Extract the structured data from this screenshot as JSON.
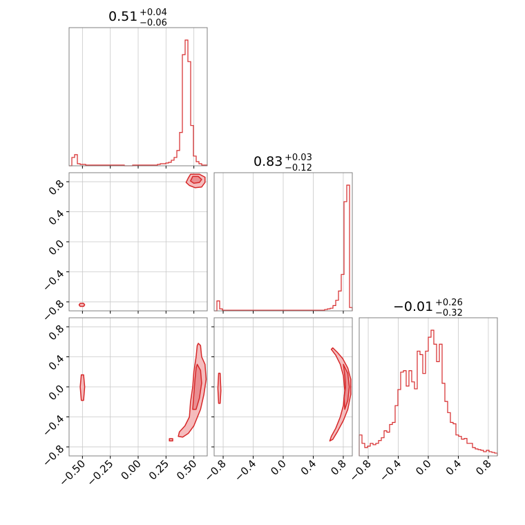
{
  "colors": {
    "line": "#d62728",
    "fill": "#f4b5b6",
    "grid": "#c8c8c8",
    "frame": "#7f7f7f"
  },
  "chart_data": {
    "type": "corner",
    "parameters": [
      {
        "title_main": "0.51",
        "title_plus": "+0.04",
        "title_minus": "−0.06",
        "range": [
          -0.62,
          0.62
        ],
        "ticks": [
          -0.5,
          -0.25,
          0.0,
          0.25,
          0.5
        ],
        "tick_labels": [
          "−0.50",
          "−0.25",
          "0.00",
          "0.25",
          "0.50"
        ]
      },
      {
        "title_main": "0.83",
        "title_plus": "+0.03",
        "title_minus": "−0.12",
        "range": [
          -0.92,
          0.92
        ],
        "ticks": [
          -0.8,
          -0.4,
          0.0,
          0.4,
          0.8
        ],
        "tick_labels": [
          "−0.8",
          "−0.4",
          "0.0",
          "0.4",
          "0.8"
        ]
      },
      {
        "title_main": "−0.01",
        "title_plus": "+0.26",
        "title_minus": "−0.32",
        "range": [
          -0.92,
          0.92
        ],
        "ticks": [
          -0.8,
          -0.4,
          0.0,
          0.4,
          0.8
        ],
        "tick_labels": [
          "−0.8",
          "−0.4",
          "0.0",
          "0.4",
          "0.8"
        ]
      }
    ],
    "histograms": [
      {
        "param": 0,
        "bin_edges": [
          -0.62,
          0.62
        ],
        "nbins": 50,
        "counts": [
          0,
          12,
          16,
          3,
          2,
          2,
          1,
          1,
          1,
          1,
          1,
          1,
          1,
          1,
          1,
          1,
          1,
          1,
          1,
          1,
          0,
          0,
          0,
          1,
          1,
          1,
          1,
          1,
          1,
          1,
          1,
          1,
          2,
          3,
          3,
          4,
          5,
          8,
          12,
          22,
          48,
          160,
          181,
          150,
          58,
          14,
          6,
          3,
          1,
          1
        ]
      },
      {
        "param": 1,
        "bin_edges": [
          -0.92,
          0.92
        ],
        "nbins": 50,
        "counts": [
          0,
          15,
          3,
          1,
          1,
          1,
          1,
          1,
          1,
          1,
          1,
          1,
          1,
          1,
          1,
          1,
          1,
          1,
          1,
          1,
          1,
          1,
          1,
          1,
          1,
          1,
          1,
          1,
          1,
          1,
          1,
          1,
          1,
          1,
          1,
          1,
          1,
          1,
          1,
          1,
          2,
          3,
          4,
          8,
          16,
          30,
          55,
          165,
          190,
          5
        ]
      },
      {
        "param": 2,
        "bin_edges": [
          -0.92,
          0.92
        ],
        "nbins": 50,
        "counts": [
          30,
          18,
          12,
          14,
          18,
          16,
          18,
          22,
          26,
          36,
          34,
          45,
          48,
          72,
          95,
          120,
          122,
          100,
          122,
          106,
          96,
          150,
          145,
          118,
          150,
          170,
          180,
          160,
          135,
          160,
          104,
          78,
          62,
          48,
          46,
          30,
          28,
          24,
          25,
          18,
          18,
          12,
          10,
          9,
          8,
          6,
          8,
          6,
          5,
          4
        ]
      }
    ],
    "contours": [
      {
        "x_param": 0,
        "y_param": 1,
        "regions": [
          {
            "level": "outer",
            "points": [
              [
                0.47,
                0.9
              ],
              [
                0.55,
                0.9
              ],
              [
                0.6,
                0.86
              ],
              [
                0.6,
                0.79
              ],
              [
                0.57,
                0.73
              ],
              [
                0.51,
                0.72
              ],
              [
                0.46,
                0.75
              ],
              [
                0.43,
                0.79
              ],
              [
                0.45,
                0.85
              ]
            ]
          },
          {
            "level": "inner",
            "points": [
              [
                0.49,
                0.87
              ],
              [
                0.54,
                0.87
              ],
              [
                0.57,
                0.83
              ],
              [
                0.55,
                0.79
              ],
              [
                0.5,
                0.78
              ],
              [
                0.47,
                0.81
              ]
            ]
          },
          {
            "level": "outer",
            "points": [
              [
                -0.52,
                -0.82
              ],
              [
                -0.49,
                -0.82
              ],
              [
                -0.48,
                -0.84
              ],
              [
                -0.49,
                -0.86
              ],
              [
                -0.52,
                -0.86
              ],
              [
                -0.53,
                -0.84
              ]
            ]
          }
        ]
      },
      {
        "x_param": 0,
        "y_param": 2,
        "regions": [
          {
            "level": "outer",
            "points": [
              [
                0.54,
                0.58
              ],
              [
                0.56,
                0.55
              ],
              [
                0.57,
                0.4
              ],
              [
                0.6,
                0.3
              ],
              [
                0.61,
                0.1
              ],
              [
                0.59,
                -0.1
              ],
              [
                0.56,
                -0.3
              ],
              [
                0.5,
                -0.52
              ],
              [
                0.45,
                -0.62
              ],
              [
                0.4,
                -0.67
              ],
              [
                0.36,
                -0.66
              ],
              [
                0.37,
                -0.6
              ],
              [
                0.42,
                -0.52
              ],
              [
                0.46,
                -0.4
              ],
              [
                0.47,
                -0.2
              ],
              [
                0.49,
                0.0
              ],
              [
                0.5,
                0.2
              ],
              [
                0.52,
                0.4
              ],
              [
                0.53,
                0.55
              ]
            ]
          },
          {
            "level": "inner",
            "points": [
              [
                0.53,
                0.3
              ],
              [
                0.56,
                0.22
              ],
              [
                0.57,
                0.05
              ],
              [
                0.55,
                -0.15
              ],
              [
                0.52,
                -0.3
              ],
              [
                0.49,
                -0.3
              ],
              [
                0.5,
                -0.1
              ],
              [
                0.51,
                0.1
              ],
              [
                0.52,
                0.25
              ]
            ]
          },
          {
            "level": "outer",
            "points": [
              [
                -0.51,
                0.16
              ],
              [
                -0.49,
                0.16
              ],
              [
                -0.48,
                0.0
              ],
              [
                -0.49,
                -0.18
              ],
              [
                -0.51,
                -0.18
              ],
              [
                -0.52,
                0.0
              ]
            ]
          },
          {
            "level": "outer",
            "points": [
              [
                0.28,
                -0.69
              ],
              [
                0.31,
                -0.69
              ],
              [
                0.31,
                -0.72
              ],
              [
                0.28,
                -0.72
              ]
            ]
          }
        ]
      },
      {
        "x_param": 1,
        "y_param": 2,
        "regions": [
          {
            "level": "outer",
            "points": [
              [
                0.66,
                0.52
              ],
              [
                0.72,
                0.46
              ],
              [
                0.79,
                0.38
              ],
              [
                0.86,
                0.25
              ],
              [
                0.9,
                0.1
              ],
              [
                0.9,
                -0.1
              ],
              [
                0.86,
                -0.3
              ],
              [
                0.8,
                -0.45
              ],
              [
                0.72,
                -0.6
              ],
              [
                0.66,
                -0.7
              ],
              [
                0.62,
                -0.72
              ],
              [
                0.64,
                -0.66
              ],
              [
                0.7,
                -0.55
              ],
              [
                0.76,
                -0.4
              ],
              [
                0.8,
                -0.25
              ],
              [
                0.82,
                -0.05
              ],
              [
                0.8,
                0.15
              ],
              [
                0.76,
                0.3
              ],
              [
                0.7,
                0.42
              ],
              [
                0.64,
                0.5
              ]
            ]
          },
          {
            "level": "inner",
            "points": [
              [
                0.8,
                0.3
              ],
              [
                0.86,
                0.18
              ],
              [
                0.88,
                0.0
              ],
              [
                0.86,
                -0.18
              ],
              [
                0.82,
                -0.3
              ],
              [
                0.81,
                -0.15
              ],
              [
                0.83,
                0.0
              ],
              [
                0.82,
                0.15
              ]
            ]
          },
          {
            "level": "outer",
            "points": [
              [
                -0.86,
                0.18
              ],
              [
                -0.84,
                0.18
              ],
              [
                -0.83,
                -0.05
              ],
              [
                -0.84,
                -0.22
              ],
              [
                -0.86,
                -0.22
              ],
              [
                -0.87,
                -0.02
              ]
            ]
          }
        ]
      }
    ]
  }
}
